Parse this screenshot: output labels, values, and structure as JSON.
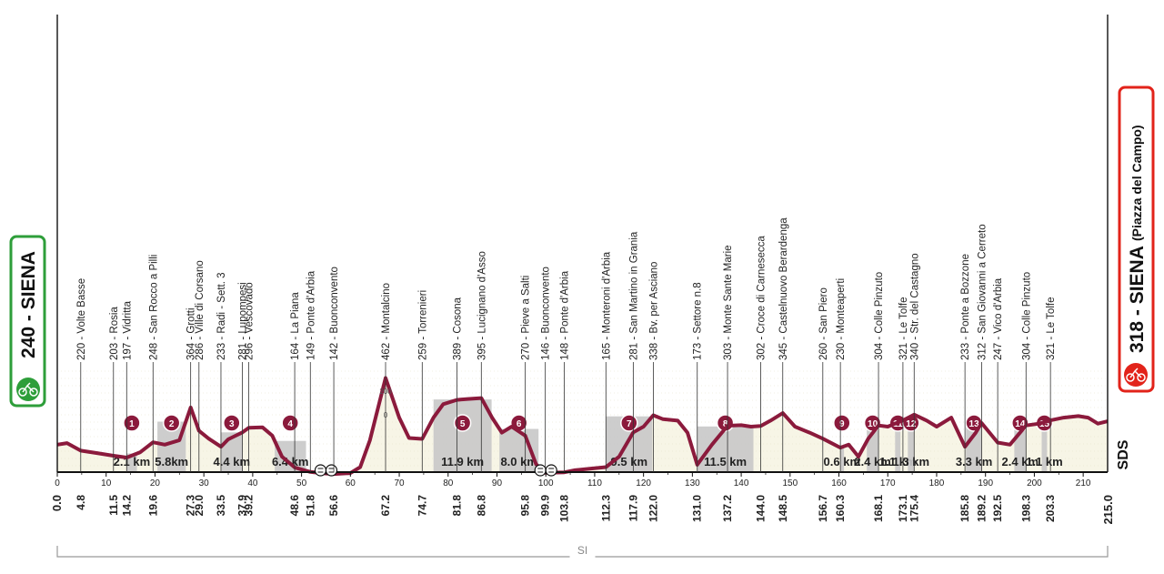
{
  "chart_data": {
    "type": "area",
    "x_unit": "km",
    "xlim": [
      0,
      215
    ],
    "ylabel_tick": [
      "200",
      "0"
    ],
    "x_ticks": [
      0,
      10,
      20,
      30,
      40,
      50,
      60,
      70,
      80,
      90,
      100,
      110,
      120,
      130,
      140,
      150,
      160,
      170,
      180,
      190,
      200,
      210
    ],
    "start": {
      "label": "240 - SIENA",
      "km": "0.0",
      "color": "#2e9e3a"
    },
    "finish": {
      "label": "318 - SIENA",
      "sublabel": "(Piazza del Campo)",
      "km": "215.0",
      "color": "#e2231a"
    },
    "profile": [
      [
        0,
        240
      ],
      [
        2,
        245
      ],
      [
        4.8,
        220
      ],
      [
        8,
        212
      ],
      [
        11.5,
        203
      ],
      [
        14.2,
        197
      ],
      [
        17,
        215
      ],
      [
        19.6,
        248
      ],
      [
        22,
        240
      ],
      [
        25,
        255
      ],
      [
        27.3,
        364
      ],
      [
        29,
        286
      ],
      [
        31,
        260
      ],
      [
        33.5,
        233
      ],
      [
        35,
        258
      ],
      [
        37.9,
        281
      ],
      [
        39.2,
        296
      ],
      [
        42,
        298
      ],
      [
        44,
        270
      ],
      [
        46,
        200
      ],
      [
        48.6,
        164
      ],
      [
        51.8,
        149
      ],
      [
        54,
        145
      ],
      [
        56.6,
        142
      ],
      [
        60,
        145
      ],
      [
        62,
        165
      ],
      [
        64,
        255
      ],
      [
        67.2,
        462
      ],
      [
        70,
        330
      ],
      [
        72,
        262
      ],
      [
        74.7,
        259
      ],
      [
        77,
        330
      ],
      [
        79,
        375
      ],
      [
        81.8,
        389
      ],
      [
        84,
        392
      ],
      [
        86.8,
        395
      ],
      [
        89,
        330
      ],
      [
        91,
        280
      ],
      [
        93,
        300
      ],
      [
        95.8,
        270
      ],
      [
        98,
        175
      ],
      [
        99.9,
        146
      ],
      [
        103.8,
        148
      ],
      [
        106,
        155
      ],
      [
        109,
        160
      ],
      [
        112.3,
        165
      ],
      [
        115,
        200
      ],
      [
        117.9,
        281
      ],
      [
        120,
        300
      ],
      [
        122.0,
        338
      ],
      [
        124,
        325
      ],
      [
        127,
        320
      ],
      [
        129,
        280
      ],
      [
        131.0,
        173
      ],
      [
        134,
        240
      ],
      [
        137.2,
        303
      ],
      [
        140,
        305
      ],
      [
        142,
        300
      ],
      [
        144.0,
        302
      ],
      [
        146,
        320
      ],
      [
        148.5,
        345
      ],
      [
        151,
        300
      ],
      [
        154,
        280
      ],
      [
        156.7,
        260
      ],
      [
        160.3,
        230
      ],
      [
        162,
        240
      ],
      [
        164,
        200
      ],
      [
        166,
        260
      ],
      [
        168.1,
        304
      ],
      [
        170,
        300
      ],
      [
        173.1,
        321
      ],
      [
        175.4,
        340
      ],
      [
        178,
        320
      ],
      [
        180,
        300
      ],
      [
        183,
        330
      ],
      [
        185.8,
        233
      ],
      [
        188,
        280
      ],
      [
        189.2,
        312
      ],
      [
        192.5,
        247
      ],
      [
        195,
        240
      ],
      [
        198.3,
        304
      ],
      [
        201,
        310
      ],
      [
        203.3,
        321
      ],
      [
        206,
        330
      ],
      [
        209,
        335
      ],
      [
        211,
        330
      ],
      [
        213,
        310
      ],
      [
        215,
        318
      ]
    ],
    "waypoints": [
      {
        "km": "4.8",
        "label": "220 - Volte Basse"
      },
      {
        "km": "11.5",
        "label": "203 - Rosia"
      },
      {
        "km": "14.2",
        "label": "197 - Vidritta"
      },
      {
        "km": "19.6",
        "label": "248 - San Rocco a Pilli"
      },
      {
        "km": "27.3",
        "label": "364 - Grotti"
      },
      {
        "km": "29.0",
        "label": "286 - Ville di Corsano"
      },
      {
        "km": "33.5",
        "label": "233 - Radi - Sett. 3"
      },
      {
        "km": "37.9",
        "label": "281 - Lupompesi"
      },
      {
        "km": "39.2",
        "label": "296 - Vescovado"
      },
      {
        "km": "48.6",
        "label": "164 - La Piana"
      },
      {
        "km": "51.8",
        "label": "149 - Ponte d'Arbia"
      },
      {
        "km": "56.6",
        "label": "142 - Buonconvento"
      },
      {
        "km": "67.2",
        "label": "462 - Montalcino"
      },
      {
        "km": "74.7",
        "label": "259 - Torrenieri"
      },
      {
        "km": "81.8",
        "label": "389 - Cosona"
      },
      {
        "km": "86.8",
        "label": "395 - Lucignano d'Asso"
      },
      {
        "km": "95.8",
        "label": "270 - Pieve a Salti"
      },
      {
        "km": "99.9",
        "label": "146 - Buonconvento"
      },
      {
        "km": "103.8",
        "label": "148 - Ponte d'Arbia"
      },
      {
        "km": "112.3",
        "label": "165 - Monteroni d'Arbia"
      },
      {
        "km": "117.9",
        "label": "281 - San Martino in Grania"
      },
      {
        "km": "122.0",
        "label": "338 - Bv. per Asciano"
      },
      {
        "km": "131.0",
        "label": "173 - Settore n.8"
      },
      {
        "km": "137.2",
        "label": "303 - Monte Sante Marie"
      },
      {
        "km": "144.0",
        "label": "302 - Croce di Carnesecca"
      },
      {
        "km": "148.5",
        "label": "345 - Castelnuovo Berardenga"
      },
      {
        "km": "156.7",
        "label": "260 - San Piero"
      },
      {
        "km": "160.3",
        "label": "230 - Monteaperti"
      },
      {
        "km": "168.1",
        "label": "304 - Colle Pinzuto"
      },
      {
        "km": "173.1",
        "label": "321 - Le Tolfe"
      },
      {
        "km": "175.4",
        "label": "340 - Str. del Castagno"
      },
      {
        "km": "185.8",
        "label": "233 - Ponte a Bozzone"
      },
      {
        "km": "189.2",
        "label": "312 - San Giovanni a Cerreto"
      },
      {
        "km": "192.5",
        "label": "247 - Vico d'Arbia"
      },
      {
        "km": "198.3",
        "label": "304 - Colle Pinzuto"
      },
      {
        "km": "203.3",
        "label": "321 - Le Tolfe"
      }
    ],
    "sectors": [
      {
        "num": "1",
        "from": 14.2,
        "to": 16.3,
        "length": "2.1 km"
      },
      {
        "num": "2",
        "from": 20.5,
        "to": 26.3,
        "length": "5.8km"
      },
      {
        "num": "3",
        "from": 33.5,
        "to": 37.9,
        "length": "4.4 km"
      },
      {
        "num": "4",
        "from": 44.5,
        "to": 50.9,
        "length": "6.4 km"
      },
      {
        "num": "5",
        "from": 77.0,
        "to": 88.9,
        "length": "11.9 km"
      },
      {
        "num": "6",
        "from": 90.5,
        "to": 98.5,
        "length": "8.0 km"
      },
      {
        "num": "7",
        "from": 112.3,
        "to": 121.8,
        "length": "9.5 km"
      },
      {
        "num": "8",
        "from": 131.0,
        "to": 142.5,
        "length": "11.5 km"
      },
      {
        "num": "9",
        "from": 160.3,
        "to": 160.9,
        "length": "0.6 km"
      },
      {
        "num": "10",
        "from": 165.7,
        "to": 168.1,
        "length": "2.4 km"
      },
      {
        "num": "11",
        "from": 171.5,
        "to": 172.6,
        "length": "1.1 km"
      },
      {
        "num": "12",
        "from": 174.1,
        "to": 175.4,
        "length": "1.3 km"
      },
      {
        "num": "13",
        "from": 186.0,
        "to": 189.3,
        "length": "3.3 km"
      },
      {
        "num": "14",
        "from": 195.9,
        "to": 198.3,
        "length": "2.4 km"
      },
      {
        "num": "15",
        "from": 201.5,
        "to": 202.6,
        "length": "1.1 km"
      }
    ],
    "feed_zone_km": [
      55,
      100
    ],
    "si_label": "SI",
    "brand": "SDS",
    "colors": {
      "profile": "#8b1a3c",
      "area": "#f7f5e6",
      "sector": "#c8c8c8",
      "badge": "#8b1a3c",
      "text": "#222222"
    }
  }
}
